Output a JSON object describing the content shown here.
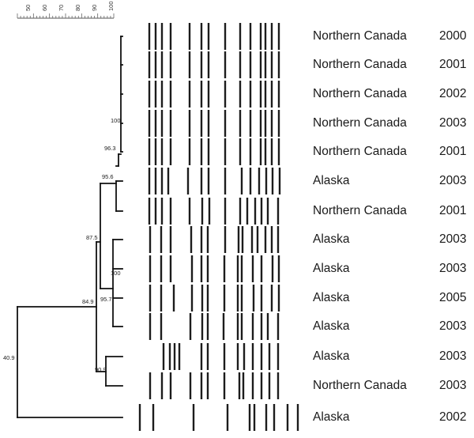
{
  "scale": {
    "ticks": [
      "50",
      "60",
      "70",
      "80",
      "90",
      "100"
    ]
  },
  "nodes": [
    {
      "id": "root",
      "value": "40.9"
    },
    {
      "id": "n_84_9",
      "value": "84.9"
    },
    {
      "id": "n_87_5",
      "value": "87.5"
    },
    {
      "id": "n_95_6",
      "value": "95.6"
    },
    {
      "id": "n_96_3",
      "value": "96.3"
    },
    {
      "id": "n_100_a",
      "value": "100"
    },
    {
      "id": "n_95_7",
      "value": "95.7"
    },
    {
      "id": "n_100_b",
      "value": "100"
    },
    {
      "id": "n_90_9",
      "value": "90.9"
    }
  ],
  "isolates": [
    {
      "location": "Northern Canada",
      "year": "2000"
    },
    {
      "location": "Northern Canada",
      "year": "2001"
    },
    {
      "location": "Northern Canada",
      "year": "2002"
    },
    {
      "location": "Northern Canada",
      "year": "2003"
    },
    {
      "location": "Northern Canada",
      "year": "2001"
    },
    {
      "location": "Alaska",
      "year": "2003"
    },
    {
      "location": "Northern Canada",
      "year": "2001"
    },
    {
      "location": "Alaska",
      "year": "2003"
    },
    {
      "location": "Alaska",
      "year": "2003"
    },
    {
      "location": "Alaska",
      "year": "2005"
    },
    {
      "location": "Alaska",
      "year": "2003"
    },
    {
      "location": "Alaska",
      "year": "2003"
    },
    {
      "location": "Northern Canada",
      "year": "2003"
    },
    {
      "location": "Alaska",
      "year": "2002"
    }
  ]
}
